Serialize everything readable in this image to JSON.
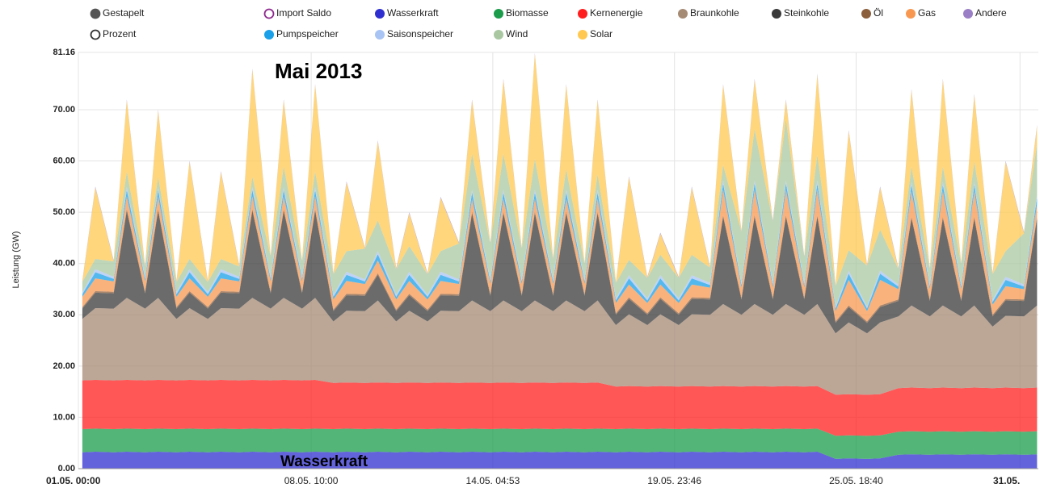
{
  "chart_data": {
    "type": "stacked_area",
    "y_label": "Leistung (GW)",
    "annotations": [
      "Mai 2013",
      "Wasserkraft"
    ],
    "toggles": [
      {
        "name": "Gestapelt",
        "color": "#555555",
        "filled": true
      },
      {
        "name": "Import Saldo",
        "color": "#8e2a8e",
        "filled": false
      },
      {
        "name": "Prozent",
        "color": "#333333",
        "filled": false
      }
    ],
    "ylim": [
      0,
      81.16
    ],
    "yticks": [
      {
        "value": 0,
        "label": "0.00"
      },
      {
        "value": 10,
        "label": "10.00"
      },
      {
        "value": 20,
        "label": "20.00"
      },
      {
        "value": 30,
        "label": "30.00"
      },
      {
        "value": 40,
        "label": "40.00"
      },
      {
        "value": 50,
        "label": "50.00"
      },
      {
        "value": 60,
        "label": "60.00"
      },
      {
        "value": 70,
        "label": "70.00"
      },
      {
        "value": 81.16,
        "label": "81.16"
      }
    ],
    "xlim": [
      "01.05. 00:00",
      "31.05. 14:00"
    ],
    "xticks": [
      "01.05. 00:00",
      "08.05. 10:00",
      "14.05. 04:53",
      "19.05. 23:46",
      "25.05. 18:40",
      "31.05."
    ],
    "grid": true,
    "x": [
      "01.05. 03:00",
      "01.05. 13:00",
      "02.05. 03:00",
      "02.05. 13:00",
      "03.05. 03:00",
      "03.05. 13:00",
      "04.05. 03:00",
      "04.05. 13:00",
      "05.05. 03:00",
      "05.05. 13:00",
      "06.05. 03:00",
      "06.05. 13:00",
      "07.05. 03:00",
      "07.05. 13:00",
      "08.05. 03:00",
      "08.05. 13:00",
      "09.05. 03:00",
      "09.05. 13:00",
      "10.05. 03:00",
      "10.05. 13:00",
      "11.05. 03:00",
      "11.05. 13:00",
      "12.05. 03:00",
      "12.05. 13:00",
      "13.05. 03:00",
      "13.05. 13:00",
      "14.05. 03:00",
      "14.05. 13:00",
      "15.05. 03:00",
      "15.05. 13:00",
      "16.05. 03:00",
      "16.05. 13:00",
      "17.05. 03:00",
      "17.05. 13:00",
      "18.05. 03:00",
      "18.05. 13:00",
      "19.05. 03:00",
      "19.05. 13:00",
      "20.05. 03:00",
      "20.05. 13:00",
      "21.05. 03:00",
      "21.05. 13:00",
      "22.05. 03:00",
      "22.05. 13:00",
      "23.05. 03:00",
      "23.05. 13:00",
      "24.05. 03:00",
      "24.05. 13:00",
      "25.05. 03:00",
      "25.05. 13:00",
      "26.05. 03:00",
      "26.05. 13:00",
      "27.05. 03:00",
      "27.05. 13:00",
      "28.05. 03:00",
      "28.05. 13:00",
      "29.05. 03:00",
      "29.05. 13:00",
      "30.05. 03:00",
      "30.05. 13:00",
      "31.05. 03:00",
      "31.05. 13:00"
    ],
    "series": [
      {
        "name": "Wasserkraft",
        "color": "#2f2fd0",
        "values": [
          3.2,
          3.3,
          3.2,
          3.3,
          3.2,
          3.3,
          3.2,
          3.3,
          3.2,
          3.3,
          3.2,
          3.3,
          3.2,
          3.3,
          3.2,
          3.3,
          3.2,
          3.3,
          3.2,
          3.3,
          3.2,
          3.3,
          3.2,
          3.3,
          3.2,
          3.3,
          3.2,
          3.3,
          3.2,
          3.3,
          3.2,
          3.3,
          3.2,
          3.3,
          3.2,
          3.3,
          3.2,
          3.3,
          3.2,
          3.3,
          3.2,
          3.3,
          3.2,
          3.3,
          3.2,
          3.3,
          3.2,
          3.3,
          1.9,
          2.0,
          1.9,
          2.0,
          2.7,
          2.8,
          2.7,
          2.8,
          2.7,
          2.8,
          2.7,
          2.8,
          2.7,
          2.8
        ]
      },
      {
        "name": "Biomasse",
        "color": "#1a9c4a",
        "values": [
          4.5,
          4.5,
          4.5,
          4.5,
          4.5,
          4.5,
          4.5,
          4.5,
          4.5,
          4.5,
          4.5,
          4.5,
          4.5,
          4.5,
          4.5,
          4.5,
          4.5,
          4.5,
          4.5,
          4.5,
          4.5,
          4.5,
          4.5,
          4.5,
          4.5,
          4.5,
          4.5,
          4.5,
          4.5,
          4.5,
          4.5,
          4.5,
          4.5,
          4.5,
          4.5,
          4.5,
          4.5,
          4.5,
          4.5,
          4.5,
          4.5,
          4.5,
          4.5,
          4.5,
          4.5,
          4.5,
          4.5,
          4.5,
          4.5,
          4.5,
          4.5,
          4.5,
          4.5,
          4.5,
          4.5,
          4.5,
          4.5,
          4.5,
          4.5,
          4.5,
          4.5,
          4.5
        ]
      },
      {
        "name": "Kernenergie",
        "color": "#ff1e1e",
        "values": [
          9.5,
          9.5,
          9.5,
          9.5,
          9.5,
          9.5,
          9.5,
          9.5,
          9.5,
          9.5,
          9.5,
          9.5,
          9.5,
          9.5,
          9.5,
          9.5,
          9.0,
          9.0,
          9.0,
          9.0,
          9.0,
          9.0,
          9.0,
          9.0,
          9.0,
          9.0,
          9.0,
          9.0,
          9.0,
          9.0,
          9.0,
          9.0,
          9.0,
          9.0,
          8.3,
          8.3,
          8.3,
          8.3,
          8.3,
          8.3,
          8.3,
          8.3,
          8.3,
          8.3,
          8.3,
          8.3,
          8.3,
          8.3,
          8.0,
          8.0,
          8.0,
          8.0,
          8.5,
          8.5,
          8.5,
          8.5,
          8.5,
          8.5,
          8.5,
          8.5,
          8.5,
          8.5
        ]
      },
      {
        "name": "Braunkohle",
        "color": "#a58a74",
        "values": [
          12,
          14,
          14,
          16,
          14,
          16,
          12,
          14,
          12,
          14,
          14,
          16,
          14,
          16,
          14,
          16,
          12,
          14,
          14,
          16,
          12,
          14,
          12,
          14,
          14,
          16,
          14,
          16,
          14,
          16,
          14,
          16,
          14,
          16,
          12,
          14,
          12,
          14,
          12,
          14,
          14,
          16,
          14,
          16,
          14,
          16,
          14,
          16,
          12,
          14,
          12,
          14,
          14,
          16,
          14,
          16,
          14,
          16,
          12,
          14,
          14,
          16
        ]
      },
      {
        "name": "Steinkohle",
        "color": "#3a3a3a",
        "values": [
          2,
          3,
          3,
          17,
          3,
          17,
          2,
          3,
          2,
          3,
          3,
          17,
          3,
          17,
          3,
          17,
          2,
          3,
          3,
          5,
          2,
          3,
          2,
          3,
          3,
          17,
          3,
          17,
          3,
          17,
          3,
          17,
          3,
          17,
          2,
          3,
          2,
          3,
          2,
          3,
          3,
          17,
          3,
          17,
          3,
          17,
          3,
          17,
          2,
          3,
          2,
          3,
          3,
          17,
          3,
          17,
          3,
          17,
          2,
          3,
          3,
          17
        ]
      },
      {
        "name": "Öl",
        "color": "#8b5e3c",
        "values": [
          0.3,
          0.3,
          0.3,
          0.3,
          0.3,
          0.3,
          0.3,
          0.3,
          0.3,
          0.3,
          0.3,
          0.3,
          0.3,
          0.3,
          0.3,
          0.3,
          0.3,
          0.3,
          0.3,
          0.3,
          0.3,
          0.3,
          0.3,
          0.3,
          0.3,
          0.3,
          0.3,
          0.3,
          0.3,
          0.3,
          0.3,
          0.3,
          0.3,
          0.3,
          0.3,
          0.3,
          0.3,
          0.3,
          0.3,
          0.3,
          0.3,
          0.3,
          0.3,
          0.3,
          0.3,
          0.3,
          0.3,
          0.3,
          0.3,
          0.3,
          0.3,
          0.3,
          0.3,
          0.3,
          0.3,
          0.3,
          0.3,
          0.3,
          0.3,
          0.3,
          0.3,
          0.3
        ]
      },
      {
        "name": "Gas",
        "color": "#f89850",
        "values": [
          2,
          2.5,
          2,
          2.5,
          2,
          2.5,
          2,
          2.5,
          2,
          2.5,
          2,
          2.5,
          2,
          2.5,
          2,
          2.5,
          2,
          2.5,
          2,
          2.5,
          2,
          2.5,
          2,
          2.5,
          2,
          2.5,
          2,
          2.5,
          2,
          2.5,
          2,
          2.5,
          2,
          2.5,
          2,
          2.5,
          2,
          2.5,
          2,
          2.5,
          2,
          5,
          2,
          5,
          2,
          5,
          2,
          5,
          2,
          5,
          2,
          5,
          2,
          5,
          2,
          5,
          2,
          5,
          2,
          2.5,
          2,
          2.5
        ]
      },
      {
        "name": "Pumpspeicher",
        "color": "#1aa0e8",
        "values": [
          0.5,
          1.2,
          0.5,
          1.2,
          0.5,
          1.2,
          0.5,
          1.2,
          0.5,
          1.2,
          0.5,
          1.2,
          0.5,
          1.2,
          0.5,
          1.2,
          0.5,
          1.2,
          0.5,
          1.2,
          0.5,
          1.2,
          0.5,
          1.2,
          0.5,
          1.2,
          0.5,
          1.2,
          0.5,
          1.2,
          0.5,
          1.2,
          0.5,
          1.2,
          0.5,
          1.2,
          0.5,
          1.2,
          0.5,
          1.2,
          0.5,
          1.2,
          0.5,
          1.2,
          0.5,
          1.2,
          0.5,
          1.2,
          0.5,
          1.2,
          0.5,
          1.2,
          0.5,
          1.2,
          0.5,
          1.2,
          0.5,
          1.2,
          0.5,
          1.2,
          0.5,
          1.2
        ]
      },
      {
        "name": "Saisonspeicher",
        "color": "#a8c4f4",
        "values": [
          0.4,
          0.6,
          0.4,
          0.6,
          0.4,
          0.6,
          0.4,
          0.6,
          0.4,
          0.6,
          0.4,
          0.6,
          0.4,
          0.6,
          0.4,
          0.6,
          0.4,
          0.6,
          0.4,
          0.6,
          0.4,
          0.6,
          0.4,
          0.6,
          0.4,
          0.6,
          0.4,
          0.6,
          0.4,
          0.6,
          0.4,
          0.6,
          0.4,
          0.6,
          0.4,
          0.6,
          0.4,
          0.6,
          0.4,
          0.6,
          0.4,
          0.6,
          0.4,
          0.6,
          0.4,
          0.6,
          0.4,
          0.6,
          0.4,
          0.6,
          0.4,
          0.6,
          0.4,
          0.6,
          0.4,
          0.6,
          0.4,
          0.6,
          0.4,
          0.6,
          0.4,
          0.6
        ]
      },
      {
        "name": "Wind",
        "color": "#a9c8a2",
        "values": [
          2,
          2,
          3,
          3,
          2,
          2,
          2,
          2,
          2,
          2,
          2,
          2,
          4,
          4,
          3,
          3,
          4,
          4,
          6,
          6,
          5,
          5,
          4,
          4,
          7,
          7,
          7,
          7,
          6,
          6,
          4,
          4,
          3,
          3,
          3,
          3,
          4,
          4,
          4,
          4,
          3,
          3,
          10,
          10,
          12,
          12,
          5,
          5,
          4,
          4,
          8,
          8,
          3,
          3,
          3,
          3,
          4,
          4,
          5,
          5,
          10,
          10
        ]
      },
      {
        "name": "Solar",
        "color": "#ffc850",
        "values": [
          0,
          13.9,
          0,
          13.9,
          0,
          12.9,
          0,
          18.9,
          0,
          16.9,
          0,
          20.9,
          0,
          12.9,
          0,
          16.9,
          0,
          13.4,
          0,
          15.4,
          0,
          6.4,
          0,
          10.4,
          0,
          10.4,
          0,
          14.4,
          0,
          20.4,
          0,
          16.4,
          0,
          14.4,
          0,
          16.1,
          0,
          4.1,
          0,
          13.1,
          0,
          15.6,
          0,
          9.6,
          0,
          3.6,
          0,
          15.6,
          0,
          23.2,
          0,
          8.2,
          0,
          14.9,
          0,
          16.9,
          0,
          12.9,
          0,
          17.4,
          0,
          3.4
        ]
      },
      {
        "name": "Andere",
        "color": "#9b7fc6",
        "values": [
          0.2,
          0.2,
          0.2,
          0.2,
          0.2,
          0.2,
          0.2,
          0.2,
          0.2,
          0.2,
          0.2,
          0.2,
          0.2,
          0.2,
          0.2,
          0.2,
          0.2,
          0.2,
          0.2,
          0.2,
          0.2,
          0.2,
          0.2,
          0.2,
          0.2,
          0.2,
          0.2,
          0.2,
          0.2,
          0.2,
          0.2,
          0.2,
          0.2,
          0.2,
          0.2,
          0.2,
          0.2,
          0.2,
          0.2,
          0.2,
          0.2,
          0.2,
          0.2,
          0.2,
          0.2,
          0.2,
          0.2,
          0.2,
          0.2,
          0.2,
          0.2,
          0.2,
          0.2,
          0.2,
          0.2,
          0.2,
          0.2,
          0.2,
          0.2,
          0.2,
          0.2,
          0.2
        ]
      }
    ]
  }
}
